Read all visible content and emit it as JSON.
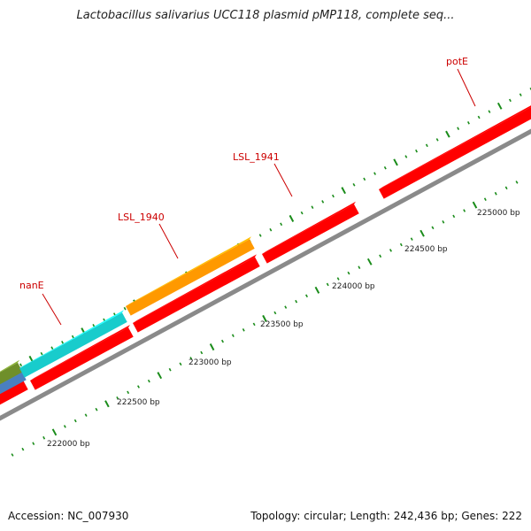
{
  "title": "Lactobacillus salivarius UCC118 plasmid pMP118, complete seq...",
  "footer": {
    "accession": "Accession: NC_007930",
    "summary": "Topology: circular; Length: 242,436 bp; Genes: 222"
  },
  "colors": {
    "backbone": "#8a8a8a",
    "ticks": "#1a8c1a",
    "gene_label": "#cc0000",
    "bp_label": "#222222"
  },
  "bp_labels": [
    "222000 bp",
    "222500 bp",
    "223000 bp",
    "223500 bp",
    "224000 bp",
    "224500 bp",
    "225000 bp"
  ],
  "gene_labels": [
    "nanE",
    "LSL_1940",
    "LSL_1941",
    "potE"
  ],
  "features": [
    {
      "color": "#ff0000",
      "strand": "forward"
    },
    {
      "color": "#ff0000",
      "strand": "forward"
    },
    {
      "color": "#ff0000",
      "strand": "forward"
    },
    {
      "color": "#ff0000",
      "strand": "forward"
    },
    {
      "color": "#ff0000",
      "strand": "forward"
    },
    {
      "color": "#ff0000",
      "strand": "forward"
    },
    {
      "color": "#4a7fc0",
      "strand": "forward"
    },
    {
      "color": "#6f8f2a",
      "strand": "forward"
    },
    {
      "color": "#18cccc",
      "strand": "forward"
    },
    {
      "color": "#ff9900",
      "strand": "forward"
    }
  ]
}
